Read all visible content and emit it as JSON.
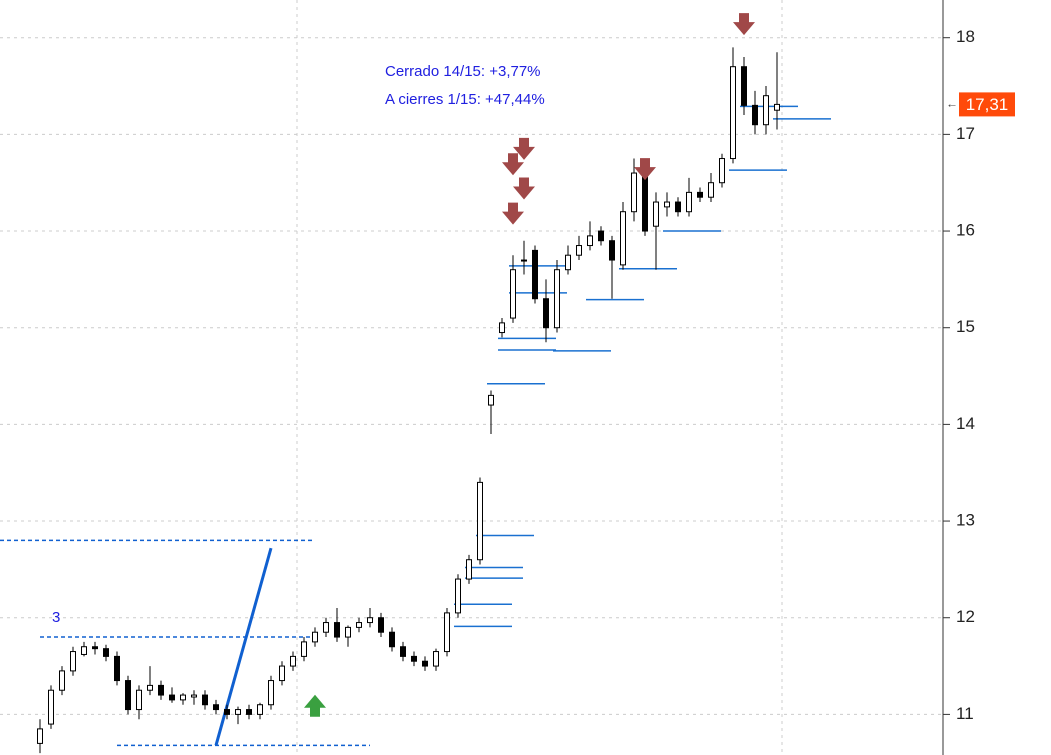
{
  "chart_data": {
    "type": "candlestick",
    "annotations": [
      "Cerrado 14/15: +3,77%",
      "A cierres 1/15: +47,44%"
    ],
    "marker_label": "3",
    "ylim": [
      10.58,
      18.39
    ],
    "yticks": [
      11,
      12,
      13,
      14,
      15,
      16,
      17,
      18
    ],
    "grid": true,
    "current": {
      "value": 17.31,
      "label": "17,31"
    },
    "open": [
      10.7,
      10.9,
      11.25,
      11.45,
      11.62,
      11.7,
      11.68,
      11.6,
      11.35,
      11.05,
      11.25,
      11.3,
      11.2,
      11.15,
      11.18,
      11.2,
      11.1,
      11.05,
      11.0,
      11.05,
      11.0,
      11.1,
      11.35,
      11.5,
      11.6,
      11.75,
      11.85,
      11.95,
      11.8,
      11.9,
      11.95,
      12.0,
      11.85,
      11.7,
      11.6,
      11.55,
      11.5,
      11.65,
      12.05,
      12.4,
      12.6,
      14.2,
      14.95,
      15.1,
      15.7,
      15.8,
      15.3,
      15.0,
      15.6,
      15.75,
      15.85,
      16.0,
      15.9,
      15.65,
      16.2,
      16.6,
      16.05,
      16.25,
      16.3,
      16.2,
      16.4,
      16.35,
      16.5,
      16.75,
      17.7,
      17.3,
      17.1,
      17.25
    ],
    "high": [
      10.95,
      11.3,
      11.5,
      11.7,
      11.75,
      11.75,
      11.72,
      11.65,
      11.4,
      11.3,
      11.5,
      11.35,
      11.28,
      11.22,
      11.25,
      11.25,
      11.15,
      11.1,
      11.08,
      11.1,
      11.12,
      11.4,
      11.55,
      11.65,
      11.8,
      11.9,
      12.0,
      12.1,
      11.92,
      12.0,
      12.1,
      12.05,
      11.9,
      11.75,
      11.65,
      11.6,
      11.68,
      12.1,
      12.45,
      12.65,
      13.45,
      14.35,
      15.1,
      15.75,
      15.9,
      15.85,
      15.5,
      15.7,
      15.85,
      15.95,
      16.1,
      16.05,
      15.95,
      16.3,
      16.75,
      16.65,
      16.4,
      16.4,
      16.35,
      16.55,
      16.45,
      16.6,
      16.8,
      17.9,
      17.8,
      17.45,
      17.5,
      17.85
    ],
    "low": [
      10.6,
      10.85,
      11.2,
      11.4,
      11.6,
      11.62,
      11.55,
      11.3,
      11.0,
      10.95,
      11.2,
      11.15,
      11.12,
      11.1,
      11.1,
      11.05,
      11.0,
      10.95,
      10.9,
      10.95,
      10.95,
      11.05,
      11.3,
      11.45,
      11.55,
      11.7,
      11.8,
      11.75,
      11.7,
      11.85,
      11.9,
      11.8,
      11.65,
      11.55,
      11.5,
      11.45,
      11.45,
      11.6,
      12.0,
      12.35,
      12.55,
      13.9,
      14.9,
      15.05,
      15.55,
      15.25,
      14.85,
      14.95,
      15.55,
      15.7,
      15.8,
      15.85,
      15.3,
      15.6,
      16.1,
      15.95,
      15.6,
      16.15,
      16.15,
      16.15,
      16.3,
      16.3,
      16.45,
      16.7,
      17.2,
      17.0,
      17.0,
      17.05
    ],
    "close": [
      10.85,
      11.25,
      11.45,
      11.65,
      11.7,
      11.68,
      11.6,
      11.35,
      11.05,
      11.25,
      11.3,
      11.2,
      11.15,
      11.2,
      11.2,
      11.1,
      11.05,
      11.0,
      11.05,
      11.0,
      11.1,
      11.35,
      11.5,
      11.6,
      11.75,
      11.85,
      11.95,
      11.8,
      11.9,
      11.95,
      12.0,
      11.85,
      11.7,
      11.6,
      11.55,
      11.5,
      11.65,
      12.05,
      12.4,
      12.6,
      13.4,
      14.3,
      15.05,
      15.6,
      15.7,
      15.3,
      15.0,
      15.6,
      15.75,
      15.85,
      15.95,
      15.9,
      15.7,
      16.2,
      16.6,
      16.0,
      16.3,
      16.3,
      16.2,
      16.4,
      16.35,
      16.5,
      16.75,
      17.7,
      17.3,
      17.1,
      17.4,
      17.31
    ],
    "levels": [
      {
        "at": 64,
        "value": 17.29
      },
      {
        "at": 67,
        "value": 17.16
      },
      {
        "at": 63,
        "value": 16.63
      },
      {
        "at": 57,
        "value": 16.0
      },
      {
        "at": 53,
        "value": 15.61
      },
      {
        "at": 50,
        "value": 15.29
      },
      {
        "at": 43,
        "value": 15.36
      },
      {
        "at": 43,
        "value": 15.64
      },
      {
        "at": 42,
        "value": 14.89
      },
      {
        "at": 42,
        "value": 14.77
      },
      {
        "at": 47,
        "value": 14.76
      },
      {
        "at": 41,
        "value": 14.42
      },
      {
        "at": 40,
        "value": 12.85
      },
      {
        "at": 39,
        "value": 12.52
      },
      {
        "at": 39,
        "value": 12.41
      },
      {
        "at": 38,
        "value": 12.14
      },
      {
        "at": 38,
        "value": 11.91
      }
    ],
    "dashed_levels": [
      {
        "from": -4,
        "to": 25,
        "value": 12.8
      },
      {
        "from": 0,
        "to": 25,
        "value": 11.8
      },
      {
        "from": 7,
        "to": 30,
        "value": 10.68
      }
    ],
    "trend": {
      "from": 16,
      "to": 21,
      "start": 10.68,
      "end": 12.72
    },
    "signals": [
      {
        "at": 64,
        "value": 18.13,
        "kind": "sell"
      },
      {
        "at": 55,
        "value": 16.63,
        "kind": "sell"
      },
      {
        "at": 43,
        "value": 16.68,
        "kind": "sell"
      },
      {
        "at": 44,
        "value": 16.84,
        "kind": "sell"
      },
      {
        "at": 44,
        "value": 16.43,
        "kind": "sell"
      },
      {
        "at": 43,
        "value": 16.17,
        "kind": "sell"
      },
      {
        "at": 25,
        "value": 11.1,
        "kind": "buy"
      }
    ]
  }
}
